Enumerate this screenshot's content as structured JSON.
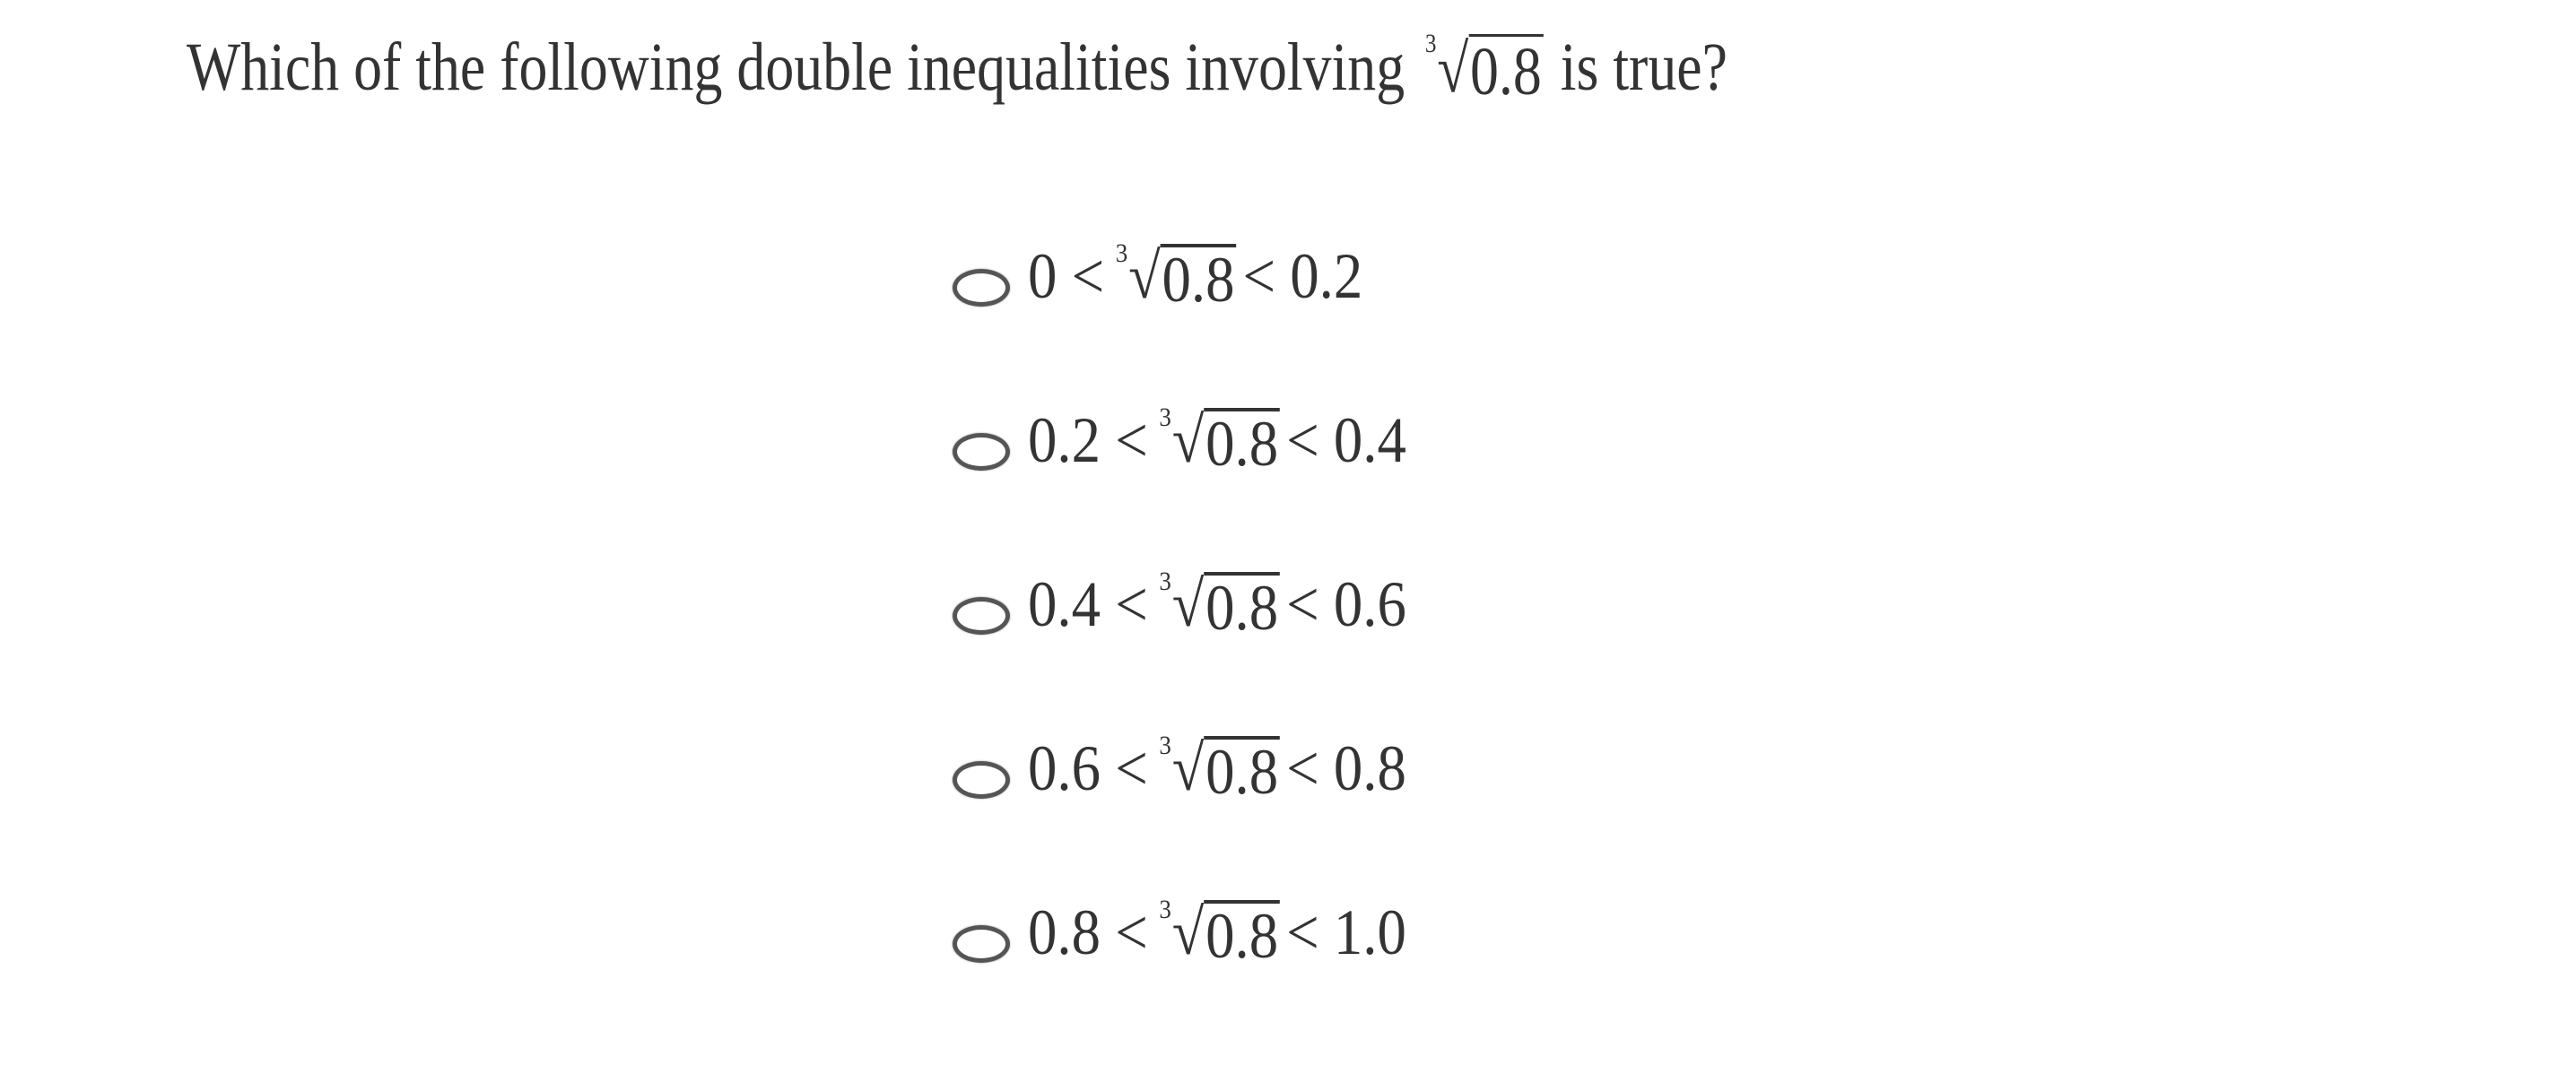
{
  "question": {
    "prefix": "Which of the following double inequalities involving",
    "root_index": "3",
    "root_sign": "√",
    "radicand": "0.8",
    "suffix": "is true?"
  },
  "options": [
    {
      "left": "0 <",
      "index": "3",
      "sign": "√",
      "radicand": "0.8",
      "right": "< 0.2",
      "selected": false
    },
    {
      "left": "0.2 <",
      "index": "3",
      "sign": "√",
      "radicand": "0.8",
      "right": "< 0.4",
      "selected": false
    },
    {
      "left": "0.4 <",
      "index": "3",
      "sign": "√",
      "radicand": "0.8",
      "right": "< 0.6",
      "selected": false
    },
    {
      "left": "0.6 <",
      "index": "3",
      "sign": "√",
      "radicand": "0.8",
      "right": "< 0.8",
      "selected": false
    },
    {
      "left": "0.8 <",
      "index": "3",
      "sign": "√",
      "radicand": "0.8",
      "right": "< 1.0",
      "selected": false
    }
  ],
  "colors": {
    "text": "#333333",
    "radio_border": "#555555"
  }
}
